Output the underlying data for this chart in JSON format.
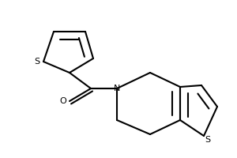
{
  "bg_color": "#ffffff",
  "line_color": "#000000",
  "line_width": 1.5,
  "figsize": [
    3.0,
    2.0
  ],
  "dpi": 100,
  "font_size": 8,
  "xlim": [
    0,
    300
  ],
  "ylim": [
    0,
    200
  ]
}
